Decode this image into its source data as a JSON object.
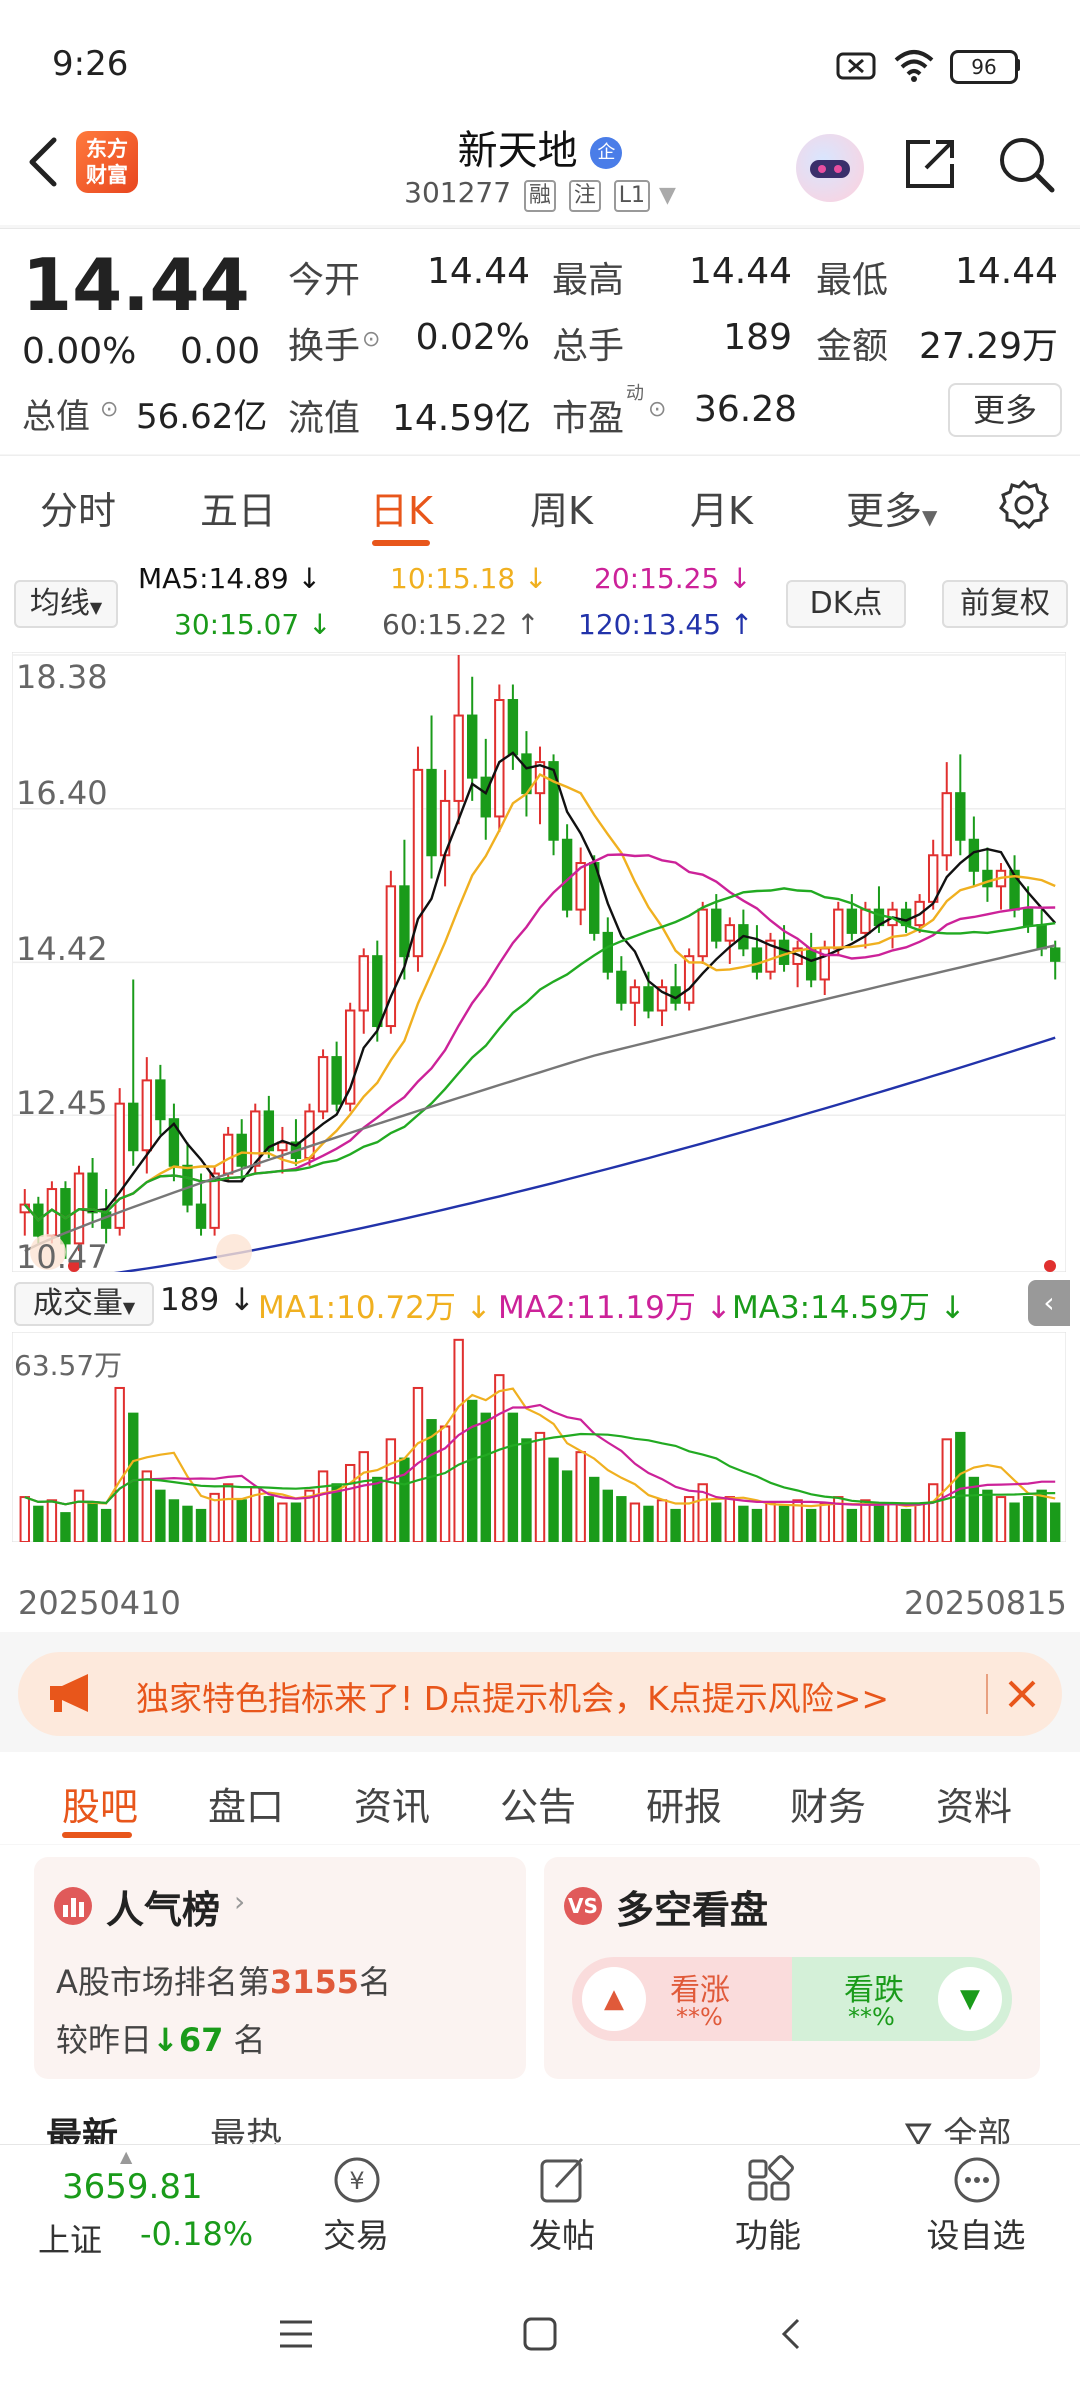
{
  "status_bar": {
    "time": "9:26",
    "battery": "96"
  },
  "header": {
    "logo_line1": "东方",
    "logo_line2": "财富",
    "stock_name": "新天地",
    "badge": "企",
    "code": "301277",
    "tags": [
      "融",
      "注",
      "L1"
    ]
  },
  "quote": {
    "price": "14.44",
    "change_pct": "0.00%",
    "change": "0.00",
    "fields": [
      {
        "label": "今开",
        "value": "14.44"
      },
      {
        "label": "最高",
        "value": "14.44"
      },
      {
        "label": "最低",
        "value": "14.44"
      },
      {
        "label": "换手",
        "value": "0.02%"
      },
      {
        "label": "总手",
        "value": "189"
      },
      {
        "label": "金额",
        "value": "27.29万"
      }
    ],
    "total_value_label": "总值",
    "total_value": "56.62亿",
    "float_value_label": "流值",
    "float_value": "14.59亿",
    "pe_label": "市盈",
    "pe_sup": "动",
    "pe_value": "36.28",
    "more_label": "更多"
  },
  "period_tabs": [
    {
      "label": "分时",
      "active": false
    },
    {
      "label": "五日",
      "active": false
    },
    {
      "label": "日K",
      "active": true
    },
    {
      "label": "周K",
      "active": false
    },
    {
      "label": "月K",
      "active": false
    },
    {
      "label": "更多",
      "active": false
    }
  ],
  "ma_indicators": {
    "selector_label": "均线",
    "ma5": "MA5:14.89 ↓",
    "ma10": "10:15.18 ↓",
    "ma20": "20:15.25 ↓",
    "ma30": "30:15.07 ↓",
    "ma60": "60:15.22 ↑",
    "ma120": "120:13.45 ↑",
    "dk_label": "DK点",
    "adjust_label": "前复权"
  },
  "colors": {
    "accent": "#e8561b",
    "up": "#e0302f",
    "down": "#1a9b1a",
    "ma5": "#111111",
    "ma10": "#f0b020",
    "ma20": "#cc2299",
    "ma30": "#22aa22",
    "ma60": "#777777",
    "ma120": "#2233aa"
  },
  "chart_data": {
    "type": "candlestick",
    "y_ticks": [
      "18.38",
      "16.40",
      "14.42",
      "12.45",
      "10.47"
    ],
    "ylim": [
      10.47,
      18.38
    ],
    "x_labels": [
      "20250410",
      "20250815"
    ],
    "candles": [
      [
        11.2,
        11.5,
        10.9,
        11.3
      ],
      [
        11.3,
        11.4,
        10.8,
        10.9
      ],
      [
        10.9,
        11.6,
        10.8,
        11.5
      ],
      [
        11.5,
        11.6,
        10.6,
        10.8
      ],
      [
        10.8,
        11.8,
        10.7,
        11.7
      ],
      [
        11.7,
        11.9,
        11.0,
        11.2
      ],
      [
        11.2,
        11.5,
        10.8,
        11.0
      ],
      [
        11.0,
        12.8,
        10.9,
        12.6
      ],
      [
        12.6,
        14.2,
        11.8,
        12.0
      ],
      [
        12.0,
        13.2,
        11.7,
        12.9
      ],
      [
        12.9,
        13.1,
        12.2,
        12.4
      ],
      [
        12.4,
        12.6,
        11.6,
        11.8
      ],
      [
        11.8,
        12.1,
        11.2,
        11.3
      ],
      [
        11.3,
        11.7,
        10.9,
        11.0
      ],
      [
        11.0,
        11.8,
        10.9,
        11.7
      ],
      [
        11.7,
        12.3,
        11.6,
        12.2
      ],
      [
        12.2,
        12.4,
        11.6,
        11.8
      ],
      [
        11.8,
        12.6,
        11.7,
        12.5
      ],
      [
        12.5,
        12.7,
        11.9,
        12.0
      ],
      [
        12.0,
        12.3,
        11.7,
        12.1
      ],
      [
        12.1,
        12.4,
        11.8,
        11.9
      ],
      [
        11.9,
        12.6,
        11.8,
        12.5
      ],
      [
        12.5,
        13.3,
        12.4,
        13.2
      ],
      [
        13.2,
        13.4,
        12.5,
        12.6
      ],
      [
        12.6,
        13.9,
        12.5,
        13.8
      ],
      [
        13.8,
        14.6,
        13.5,
        14.5
      ],
      [
        14.5,
        14.7,
        13.4,
        13.6
      ],
      [
        13.6,
        15.6,
        13.5,
        15.4
      ],
      [
        15.4,
        16.0,
        14.2,
        14.5
      ],
      [
        14.5,
        17.2,
        14.3,
        16.9
      ],
      [
        16.9,
        17.6,
        15.5,
        15.8
      ],
      [
        15.8,
        16.9,
        15.4,
        16.5
      ],
      [
        16.5,
        18.38,
        16.2,
        17.6
      ],
      [
        17.6,
        18.1,
        16.5,
        16.8
      ],
      [
        16.8,
        17.3,
        16.0,
        16.3
      ],
      [
        16.3,
        18.0,
        16.1,
        17.8
      ],
      [
        17.8,
        18.0,
        16.9,
        17.1
      ],
      [
        17.1,
        17.4,
        16.3,
        16.6
      ],
      [
        16.6,
        17.2,
        16.2,
        17.0
      ],
      [
        17.0,
        17.1,
        15.8,
        16.0
      ],
      [
        16.0,
        16.2,
        15.0,
        15.1
      ],
      [
        15.1,
        15.9,
        14.9,
        15.7
      ],
      [
        15.7,
        15.8,
        14.7,
        14.8
      ],
      [
        14.8,
        15.0,
        14.2,
        14.3
      ],
      [
        14.3,
        14.5,
        13.8,
        13.9
      ],
      [
        13.9,
        14.2,
        13.6,
        14.1
      ],
      [
        14.1,
        14.3,
        13.7,
        13.8
      ],
      [
        13.8,
        14.2,
        13.6,
        14.1
      ],
      [
        14.1,
        14.4,
        13.8,
        13.9
      ],
      [
        13.9,
        14.6,
        13.8,
        14.5
      ],
      [
        14.5,
        15.2,
        14.4,
        15.1
      ],
      [
        15.1,
        15.3,
        14.6,
        14.7
      ],
      [
        14.7,
        15.0,
        14.4,
        14.9
      ],
      [
        14.9,
        15.1,
        14.5,
        14.6
      ],
      [
        14.6,
        14.9,
        14.2,
        14.3
      ],
      [
        14.3,
        14.8,
        14.2,
        14.7
      ],
      [
        14.7,
        14.9,
        14.3,
        14.4
      ],
      [
        14.4,
        14.7,
        14.1,
        14.6
      ],
      [
        14.6,
        14.8,
        14.1,
        14.2
      ],
      [
        14.2,
        14.7,
        14.0,
        14.6
      ],
      [
        14.6,
        15.2,
        14.5,
        15.1
      ],
      [
        15.1,
        15.3,
        14.7,
        14.8
      ],
      [
        14.8,
        15.2,
        14.6,
        15.1
      ],
      [
        15.1,
        15.4,
        14.8,
        14.9
      ],
      [
        14.9,
        15.2,
        14.6,
        15.1
      ],
      [
        15.1,
        15.2,
        14.8,
        14.9
      ],
      [
        14.9,
        15.3,
        14.8,
        15.2
      ],
      [
        15.2,
        16.0,
        15.1,
        15.8
      ],
      [
        15.8,
        17.0,
        15.6,
        16.6
      ],
      [
        16.6,
        17.1,
        15.8,
        16.0
      ],
      [
        16.0,
        16.3,
        15.4,
        15.6
      ],
      [
        15.6,
        15.9,
        15.2,
        15.4
      ],
      [
        15.4,
        15.7,
        15.1,
        15.6
      ],
      [
        15.6,
        15.8,
        15.0,
        15.1
      ],
      [
        15.1,
        15.4,
        14.8,
        14.9
      ],
      [
        14.9,
        15.1,
        14.5,
        14.6
      ],
      [
        14.6,
        14.7,
        14.2,
        14.44
      ]
    ],
    "volume": {
      "label": "成交量",
      "value": "189 ↓",
      "ma1": "MA1:10.72万 ↓",
      "ma2": "MA2:11.19万 ↓",
      "ma3": "MA3:14.59万 ↓",
      "max_label": "63.57万",
      "bars": [
        14,
        11,
        13,
        9,
        16,
        12,
        10,
        48,
        40,
        22,
        16,
        13,
        11,
        10,
        15,
        18,
        13,
        17,
        14,
        12,
        12,
        16,
        22,
        18,
        24,
        28,
        20,
        32,
        26,
        48,
        38,
        36,
        63,
        44,
        40,
        52,
        40,
        32,
        34,
        26,
        22,
        28,
        20,
        16,
        14,
        12,
        11,
        13,
        10,
        14,
        18,
        12,
        14,
        11,
        10,
        12,
        11,
        13,
        10,
        12,
        14,
        10,
        13,
        11,
        12,
        10,
        12,
        18,
        32,
        34,
        20,
        16,
        14,
        12,
        14,
        16,
        12
      ]
    }
  },
  "banner": {
    "text": "独家特色指标来了! D点提示机会，K点提示风险>>"
  },
  "section_tabs": [
    {
      "label": "股吧",
      "active": true
    },
    {
      "label": "盘口",
      "active": false
    },
    {
      "label": "资讯",
      "active": false
    },
    {
      "label": "公告",
      "active": false
    },
    {
      "label": "研报",
      "active": false
    },
    {
      "label": "财务",
      "active": false
    },
    {
      "label": "资料",
      "active": false
    }
  ],
  "popularity": {
    "title": "人气榜",
    "rank_prefix": "A股市场排名第",
    "rank": "3155",
    "rank_suffix": "名",
    "change_prefix": "较昨日",
    "change_value": "67",
    "change_suffix": "名"
  },
  "sentiment": {
    "title": "多空看盘",
    "bull_label": "看涨",
    "bull_value": "**%",
    "bear_label": "看跌",
    "bear_value": "**%"
  },
  "feed_filters": {
    "latest": "最新",
    "hot": "最热",
    "all": "全部"
  },
  "bottom_bar": {
    "index_value": "3659.81",
    "index_name": "上证",
    "index_change": "-0.18%",
    "items": [
      {
        "label": "交易",
        "icon": "trade-icon"
      },
      {
        "label": "发帖",
        "icon": "edit-icon"
      },
      {
        "label": "功能",
        "icon": "grid-icon"
      },
      {
        "label": "设自选",
        "icon": "more-icon"
      }
    ]
  }
}
